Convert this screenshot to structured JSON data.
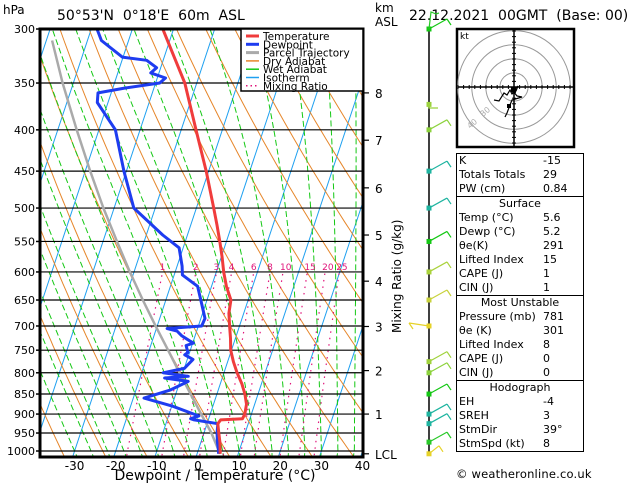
{
  "header": {
    "pressure_unit": "hPa",
    "location": "50°53'N  0°18'E  60m  ASL",
    "height_unit_line1": "km",
    "height_unit_line2": "ASL",
    "datetime": "22.12.2021  00GMT  (Base: 00)"
  },
  "colors": {
    "temperature": "#f03c3c",
    "dewpoint": "#1e3cf0",
    "parcel": "#aaaaaa",
    "dry_adiabat": "#e6862a",
    "wet_adiabat": "#14c814",
    "isotherm": "#1ea0f0",
    "mixing_ratio": "#e0147a"
  },
  "chart_data": {
    "type": "line",
    "title": "50°53'N 0°18'E 60m ASL",
    "xlabel": "Dewpoint / Temperature (°C)",
    "ylabel": "hPa",
    "y2label": "Mixing Ratio (g/kg)",
    "xlim": [
      -38,
      40
    ],
    "ylim": [
      1000,
      300
    ],
    "x_ticks": [
      -30,
      -20,
      -10,
      0,
      10,
      20,
      30,
      40
    ],
    "x_tick_labels": [
      "-30",
      "-20",
      "-10",
      "0",
      "10",
      "20",
      "30",
      "40"
    ],
    "pressure_levels": [
      300,
      350,
      400,
      450,
      500,
      550,
      600,
      650,
      700,
      750,
      800,
      850,
      900,
      950,
      1000
    ],
    "km_ticks": [
      {
        "label": "8",
        "p": 360
      },
      {
        "label": "7",
        "p": 412
      },
      {
        "label": "6",
        "p": 472
      },
      {
        "label": "5",
        "p": 540
      },
      {
        "label": "4",
        "p": 616
      },
      {
        "label": "3",
        "p": 701
      },
      {
        "label": "2",
        "p": 795
      },
      {
        "label": "1",
        "p": 900
      },
      {
        "label": "LCL",
        "p": 1008
      }
    ],
    "mixing_ratio_labels": [
      "1",
      "2",
      "3",
      "4",
      "6",
      "8",
      "10",
      "15",
      "20",
      "25"
    ],
    "mixing_ratio_values": [
      1,
      2,
      3,
      4,
      6,
      8,
      10,
      15,
      20,
      25
    ],
    "mixing_ratio_label_pressure": 600,
    "legend": {
      "position": "top-right",
      "entries": [
        "Temperature",
        "Dewpoint",
        "Parcel Trajectory",
        "Dry Adiabat",
        "Wet Adiabat",
        "Isotherm",
        "Mixing Ratio"
      ]
    },
    "series": [
      {
        "name": "Temperature",
        "points": [
          [
            1008,
            5.6
          ],
          [
            1000,
            5.4
          ],
          [
            975,
            4.6
          ],
          [
            950,
            3.6
          ],
          [
            925,
            2.6
          ],
          [
            915,
            3.0
          ],
          [
            912,
            8.2
          ],
          [
            900,
            8.4
          ],
          [
            875,
            8.0
          ],
          [
            850,
            6.8
          ],
          [
            825,
            5.2
          ],
          [
            800,
            3.2
          ],
          [
            775,
            1.4
          ],
          [
            750,
            -0.2
          ],
          [
            725,
            -1.2
          ],
          [
            700,
            -2.4
          ],
          [
            675,
            -3.6
          ],
          [
            650,
            -4.2
          ],
          [
            625,
            -6.4
          ],
          [
            600,
            -8.2
          ],
          [
            575,
            -9.8
          ],
          [
            550,
            -11.6
          ],
          [
            525,
            -13.6
          ],
          [
            500,
            -15.8
          ],
          [
            450,
            -20.6
          ],
          [
            400,
            -26.4
          ],
          [
            350,
            -32.9
          ],
          [
            330,
            -36.6
          ],
          [
            300,
            -42.6
          ]
        ]
      },
      {
        "name": "Dewpoint",
        "points": [
          [
            1008,
            5.2
          ],
          [
            1000,
            5.0
          ],
          [
            975,
            4.0
          ],
          [
            950,
            3.2
          ],
          [
            925,
            2.6
          ],
          [
            915,
            -3.4
          ],
          [
            912,
            -4.4
          ],
          [
            905,
            -2.6
          ],
          [
            880,
            -9.8
          ],
          [
            860,
            -17.4
          ],
          [
            840,
            -11.6
          ],
          [
            820,
            -8.0
          ],
          [
            812,
            -14.0
          ],
          [
            808,
            -8.4
          ],
          [
            800,
            -14.8
          ],
          [
            790,
            -10.0
          ],
          [
            770,
            -8.6
          ],
          [
            760,
            -11.0
          ],
          [
            755,
            -10.4
          ],
          [
            740,
            -11.4
          ],
          [
            735,
            -9.8
          ],
          [
            730,
            -11.0
          ],
          [
            720,
            -13.2
          ],
          [
            715,
            -14.0
          ],
          [
            710,
            -14.8
          ],
          [
            705,
            -17.4
          ],
          [
            700,
            -9.2
          ],
          [
            685,
            -9.0
          ],
          [
            650,
            -11.5
          ],
          [
            625,
            -13.4
          ],
          [
            605,
            -18.0
          ],
          [
            590,
            -18.8
          ],
          [
            560,
            -21.0
          ],
          [
            540,
            -26.0
          ],
          [
            500,
            -35.2
          ],
          [
            450,
            -40.6
          ],
          [
            400,
            -46.0
          ],
          [
            370,
            -52.6
          ],
          [
            360,
            -53.2
          ],
          [
            355,
            -47.0
          ],
          [
            350,
            -39.0
          ],
          [
            345,
            -38.0
          ],
          [
            340,
            -42.0
          ],
          [
            335,
            -41.0
          ],
          [
            328,
            -44.0
          ],
          [
            325,
            -50.2
          ],
          [
            310,
            -56.6
          ],
          [
            300,
            -58.6
          ]
        ]
      },
      {
        "name": "Parcel Trajectory",
        "points": [
          [
            1008,
            5.6
          ],
          [
            950,
            1.8
          ],
          [
            900,
            -2.2
          ],
          [
            850,
            -6.4
          ],
          [
            800,
            -10.8
          ],
          [
            750,
            -15.4
          ],
          [
            700,
            -20.4
          ],
          [
            650,
            -25.6
          ],
          [
            600,
            -31.0
          ],
          [
            550,
            -36.6
          ],
          [
            500,
            -42.6
          ],
          [
            450,
            -48.8
          ],
          [
            400,
            -55.4
          ],
          [
            350,
            -62.6
          ],
          [
            310,
            -68.6
          ]
        ]
      }
    ]
  },
  "wind_profile": {
    "description": "wind barbs by level, colored by height",
    "barbs": [
      {
        "p": 1008,
        "color": "#e6d228"
      },
      {
        "p": 975,
        "color": "#28c828"
      },
      {
        "p": 925,
        "color": "#1eb4a0"
      },
      {
        "p": 900,
        "color": "#1eb4a0"
      },
      {
        "p": 850,
        "color": "#14c814"
      },
      {
        "p": 800,
        "color": "#8cd23c"
      },
      {
        "p": 775,
        "color": "#a0d23c"
      },
      {
        "p": 700,
        "color": "#e6d228"
      },
      {
        "p": 650,
        "color": "#c8d23c"
      },
      {
        "p": 600,
        "color": "#aad23c"
      },
      {
        "p": 550,
        "color": "#14c814"
      },
      {
        "p": 500,
        "color": "#1eb4a0"
      },
      {
        "p": 450,
        "color": "#1eb4a0"
      },
      {
        "p": 400,
        "color": "#8cd23c"
      },
      {
        "p": 300,
        "color": "#14c814"
      }
    ]
  },
  "hodograph": {
    "unit_label": "kt",
    "ring_labels": [
      "40",
      "30"
    ]
  },
  "indices": {
    "basic": [
      {
        "label": "K",
        "value": "-15"
      },
      {
        "label": "Totals Totals",
        "value": "29"
      },
      {
        "label": "PW (cm)",
        "value": "0.84"
      }
    ],
    "surface": {
      "title": "Surface",
      "rows": [
        {
          "label": "Temp (°C)",
          "value": "5.6"
        },
        {
          "label": "Dewp (°C)",
          "value": "5.2"
        },
        {
          "label": "θe(K)",
          "value": "291"
        },
        {
          "label": "Lifted Index",
          "value": "15"
        },
        {
          "label": "CAPE (J)",
          "value": "1"
        },
        {
          "label": "CIN (J)",
          "value": "1"
        }
      ]
    },
    "most_unstable": {
      "title": "Most Unstable",
      "rows": [
        {
          "label": "Pressure (mb)",
          "value": "781"
        },
        {
          "label": "θe (K)",
          "value": "301"
        },
        {
          "label": "Lifted Index",
          "value": "8"
        },
        {
          "label": "CAPE (J)",
          "value": "0"
        },
        {
          "label": "CIN (J)",
          "value": "0"
        }
      ]
    },
    "hodograph": {
      "title": "Hodograph",
      "rows": [
        {
          "label": "EH",
          "value": "-4"
        },
        {
          "label": "SREH",
          "value": "3"
        },
        {
          "label": "StmDir",
          "value": "39°"
        },
        {
          "label": "StmSpd (kt)",
          "value": "8"
        }
      ]
    }
  },
  "footer": {
    "credit": "© weatheronline.co.uk"
  }
}
